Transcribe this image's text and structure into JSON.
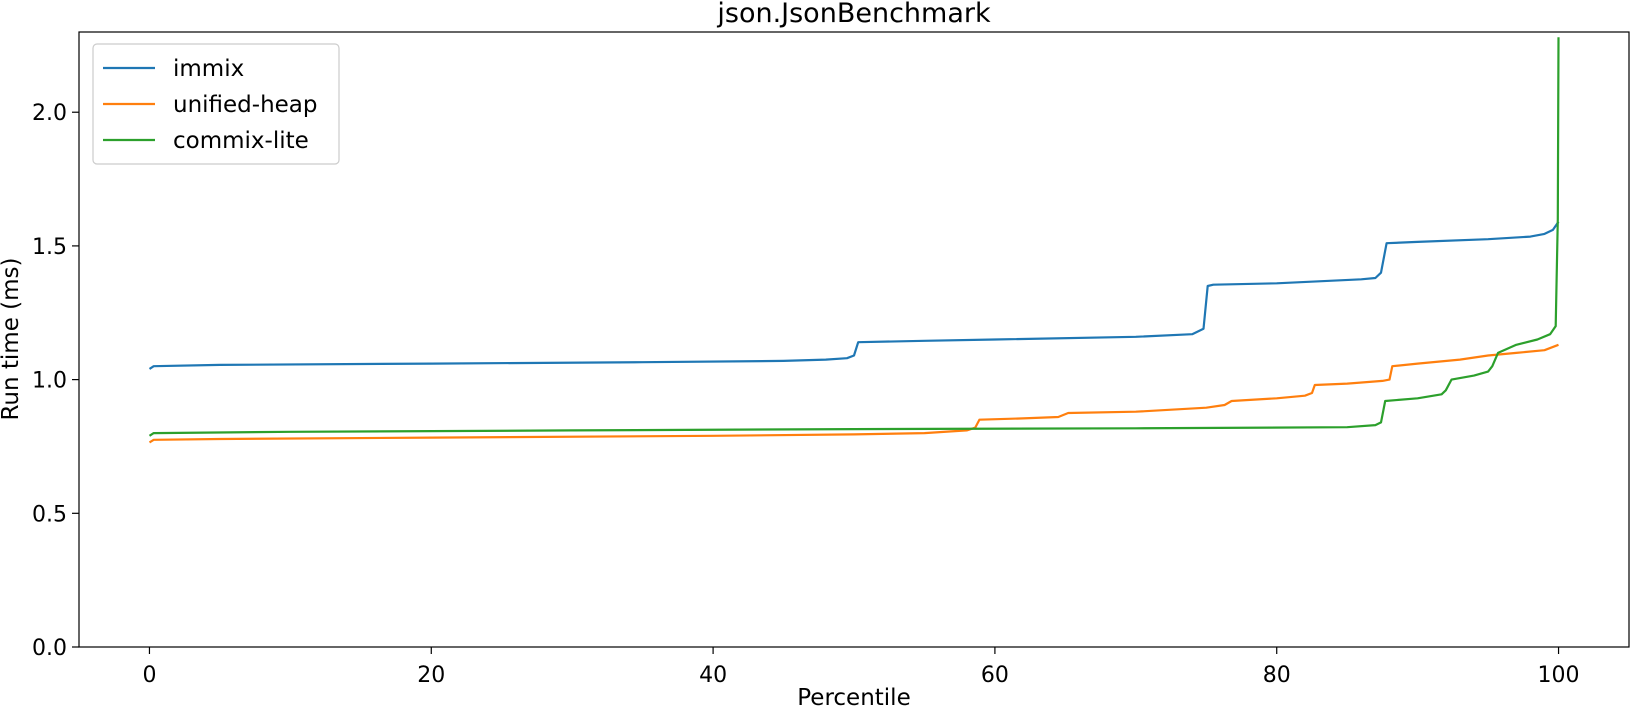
{
  "chart_data": {
    "type": "line",
    "title": "json.JsonBenchmark",
    "xlabel": "Percentile",
    "ylabel": "Run time (ms)",
    "xlim": [
      -5,
      105
    ],
    "ylim": [
      0,
      2.3
    ],
    "xticks": [
      0,
      20,
      40,
      60,
      80,
      100
    ],
    "xtick_labels": [
      "0",
      "20",
      "40",
      "60",
      "80",
      "100"
    ],
    "yticks": [
      0,
      0.5,
      1.0,
      1.5,
      2.0
    ],
    "ytick_labels": [
      "0.0",
      "0.5",
      "1.0",
      "1.5",
      "2.0"
    ],
    "grid": false,
    "legend_position": "top-left",
    "series": [
      {
        "name": "immix",
        "color": "#1f77b4",
        "x": [
          0,
          0.3,
          5,
          20,
          35,
          45,
          48,
          49.5,
          50,
          50.3,
          55,
          60,
          70,
          74,
          74.8,
          75.1,
          75.5,
          80,
          86,
          87,
          87.4,
          87.8,
          90,
          95,
          98,
          99,
          99.6,
          100
        ],
        "y": [
          1.04,
          1.05,
          1.055,
          1.06,
          1.065,
          1.07,
          1.075,
          1.08,
          1.09,
          1.14,
          1.145,
          1.15,
          1.16,
          1.17,
          1.19,
          1.35,
          1.355,
          1.36,
          1.375,
          1.38,
          1.4,
          1.51,
          1.515,
          1.525,
          1.535,
          1.545,
          1.56,
          1.59
        ]
      },
      {
        "name": "unified-heap",
        "color": "#ff7f0e",
        "x": [
          0,
          0.3,
          5,
          20,
          40,
          50,
          55,
          58,
          58.6,
          58.9,
          62,
          64.5,
          65.2,
          70,
          75,
          76.3,
          76.8,
          80,
          82,
          82.5,
          82.7,
          85,
          87.5,
          88,
          88.2,
          90,
          93,
          95,
          97,
          99,
          100
        ],
        "y": [
          0.765,
          0.775,
          0.778,
          0.783,
          0.79,
          0.795,
          0.8,
          0.81,
          0.82,
          0.85,
          0.855,
          0.86,
          0.875,
          0.88,
          0.895,
          0.905,
          0.92,
          0.93,
          0.94,
          0.95,
          0.98,
          0.985,
          0.995,
          1.0,
          1.05,
          1.06,
          1.075,
          1.09,
          1.1,
          1.11,
          1.13
        ]
      },
      {
        "name": "commix-lite",
        "color": "#2ca02c",
        "x": [
          0,
          0.3,
          10,
          30,
          50,
          70,
          85,
          87,
          87.4,
          87.7,
          90,
          91.7,
          92,
          92.4,
          94,
          95,
          95.3,
          95.7,
          97,
          98.5,
          99.4,
          99.8,
          99.95,
          100
        ],
        "y": [
          0.79,
          0.8,
          0.805,
          0.81,
          0.815,
          0.818,
          0.822,
          0.83,
          0.84,
          0.92,
          0.93,
          0.945,
          0.96,
          1.0,
          1.015,
          1.03,
          1.05,
          1.1,
          1.13,
          1.15,
          1.17,
          1.2,
          1.6,
          2.28
        ]
      }
    ]
  }
}
